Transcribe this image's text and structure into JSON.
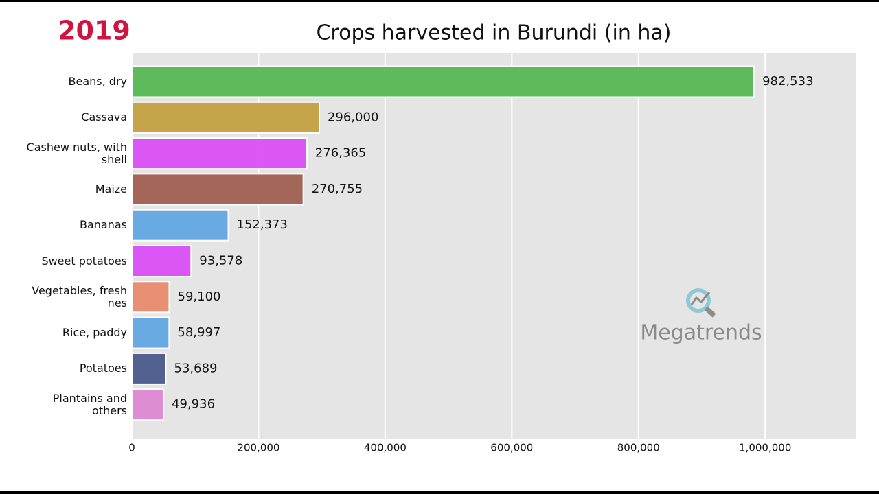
{
  "chart_data": {
    "type": "bar",
    "orientation": "horizontal",
    "title": "Crops harvested in Burundi (in ha)",
    "year": "2019",
    "watermark": "Megatrends",
    "categories": [
      "Beans, dry",
      "Cassava",
      "Cashew nuts, with\nshell",
      "Maize",
      "Bananas",
      "Sweet potatoes",
      "Vegetables, fresh\nnes",
      "Rice, paddy",
      "Potatoes",
      "Plantains and\nothers"
    ],
    "values": [
      982533,
      296000,
      276365,
      270755,
      152373,
      93578,
      59100,
      58997,
      53689,
      49936
    ],
    "value_labels": [
      "982,533",
      "296,000",
      "276,365",
      "270,755",
      "152,373",
      "93,578",
      "59,100",
      "58,997",
      "53,689",
      "49,936"
    ],
    "colors": [
      "#55b854",
      "#c4a040",
      "#d94ff5",
      "#a05f50",
      "#63a7e3",
      "#d94ff5",
      "#e88b6d",
      "#63a7e3",
      "#4a5a8a",
      "#dd88d2"
    ],
    "xlim": [
      0,
      1144000
    ],
    "xticks": [
      0,
      {
        "value": 200000,
        "label": "200,000"
      },
      {
        "value": 400000,
        "label": "400,000"
      },
      {
        "value": 600000,
        "label": "600,000"
      },
      {
        "value": 800000,
        "label": "800,000"
      },
      {
        "value": 1000000,
        "label": "1,000,000"
      }
    ],
    "grid": true
  }
}
